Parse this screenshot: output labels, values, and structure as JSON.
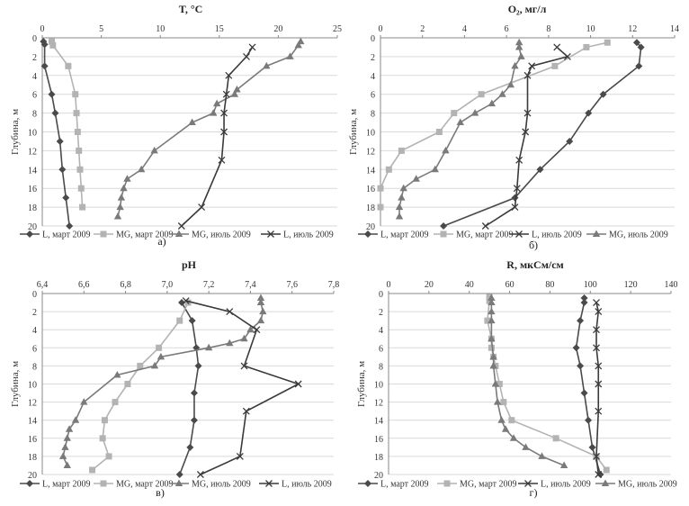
{
  "y_axis_label": "Глубина, м",
  "legend_labels": {
    "L_mar": "L, март 2009",
    "MG_mar": "MG, март 2009",
    "MG_jul": "MG, июль 2009",
    "L_jul": "L, июль 2009"
  },
  "colors": {
    "L_mar": "#4a4a4a",
    "MG_mar": "#b3b3b3",
    "MG_jul": "#7a7a7a",
    "L_jul": "#3a3a3a",
    "grid": "#d9d9d9",
    "axis": "#888888"
  },
  "chart_data": [
    {
      "id": "a",
      "type": "line",
      "title": "T, °C",
      "panel_label": "а)",
      "ylabel": "Глубина, м",
      "xlim": [
        0,
        25
      ],
      "xticks": [
        0,
        5,
        10,
        15,
        20,
        25
      ],
      "ylim": [
        0,
        20
      ],
      "yticks": [
        0,
        2,
        4,
        6,
        8,
        10,
        12,
        14,
        16,
        18,
        20
      ],
      "legend_order": [
        "L_mar",
        "MG_mar",
        "MG_jul",
        "L_jul"
      ],
      "series": [
        {
          "key": "L_mar",
          "name": "L, март 2009",
          "marker": "diamond",
          "x": [
            0.1,
            0.2,
            0.2,
            0.8,
            1.1,
            1.5,
            1.7,
            2.0,
            2.3
          ],
          "y": [
            0.4,
            0.7,
            3,
            6,
            8,
            11,
            14,
            17,
            20
          ]
        },
        {
          "key": "MG_mar",
          "name": "MG, март 2009",
          "marker": "square",
          "x": [
            0.8,
            0.9,
            2.2,
            2.8,
            2.9,
            3.0,
            3.1,
            3.2,
            3.3,
            3.4
          ],
          "y": [
            0.4,
            0.8,
            3,
            6,
            8,
            10,
            12,
            14,
            16,
            18
          ]
        },
        {
          "key": "MG_jul",
          "name": "MG, июль 2009",
          "marker": "triangle",
          "x": [
            21.9,
            21.7,
            21.0,
            19.0,
            16.5,
            16.3,
            14.8,
            14.5,
            12.7,
            9.5,
            8.4,
            7.2,
            6.9,
            6.7,
            6.6,
            6.4
          ],
          "y": [
            0.4,
            0.8,
            2,
            3,
            5.5,
            6,
            7,
            8,
            9,
            12,
            14,
            15,
            16,
            17,
            18,
            19
          ]
        },
        {
          "key": "L_jul",
          "name": "L, июль 2009",
          "marker": "x",
          "x": [
            17.8,
            17.3,
            15.8,
            15.6,
            15.4,
            15.4,
            15.2,
            13.5,
            11.8
          ],
          "y": [
            1,
            2,
            4,
            6,
            8,
            10,
            13,
            18,
            20
          ]
        }
      ]
    },
    {
      "id": "b",
      "type": "line",
      "title": "O₂, мг/л",
      "panel_label": "б)",
      "ylabel": "Глубина, м",
      "xlim": [
        0,
        14
      ],
      "xticks": [
        0,
        2,
        4,
        6,
        8,
        10,
        12,
        14
      ],
      "ylim": [
        0,
        20
      ],
      "yticks": [
        0,
        2,
        4,
        6,
        8,
        10,
        12,
        14,
        16,
        18,
        20
      ],
      "legend_order": [
        "L_mar",
        "MG_mar",
        "L_jul",
        "MG_jul"
      ],
      "series": [
        {
          "key": "L_mar",
          "name": "L, март 2009",
          "marker": "diamond",
          "x": [
            12.2,
            12.4,
            12.3,
            10.6,
            9.9,
            9.0,
            7.6,
            6.4,
            3.0
          ],
          "y": [
            0.5,
            1,
            3,
            6,
            8,
            11,
            14,
            17,
            20
          ]
        },
        {
          "key": "MG_mar",
          "name": "MG, март 2009",
          "marker": "square",
          "x": [
            10.8,
            9.8,
            8.3,
            4.8,
            3.5,
            2.8,
            1.0,
            0.4,
            0.0,
            0.0
          ],
          "y": [
            0.5,
            1,
            3,
            6,
            8,
            10,
            12,
            14,
            16,
            18
          ]
        },
        {
          "key": "L_jul",
          "name": "L, июль 2009",
          "marker": "x",
          "x": [
            8.4,
            8.9,
            7.2,
            7.0,
            7.0,
            6.9,
            6.6,
            6.5,
            6.4,
            5.0
          ],
          "y": [
            1,
            2,
            3,
            4,
            8,
            10,
            13,
            16,
            18,
            20
          ]
        },
        {
          "key": "MG_jul",
          "name": "MG, июль 2009",
          "marker": "triangle",
          "x": [
            6.6,
            6.6,
            6.7,
            6.4,
            6.2,
            5.8,
            5.3,
            4.5,
            3.8,
            3.1,
            2.6,
            1.7,
            1.1,
            1.0,
            0.9,
            0.9
          ],
          "y": [
            0.5,
            1,
            2,
            3,
            5,
            6,
            7,
            8,
            9,
            12,
            14,
            15,
            16,
            17,
            18,
            19
          ]
        }
      ]
    },
    {
      "id": "c",
      "type": "line",
      "title": "pH",
      "panel_label": "в)",
      "ylabel": "Глубина, м",
      "xlim": [
        6.4,
        7.8
      ],
      "xticks": [
        6.4,
        6.6,
        6.8,
        7.0,
        7.2,
        7.4,
        7.6,
        7.8
      ],
      "ylim": [
        0,
        20
      ],
      "yticks": [
        0,
        2,
        4,
        6,
        8,
        10,
        12,
        14,
        16,
        18,
        20
      ],
      "legend_order": [
        "L_mar",
        "MG_mar",
        "MG_jul",
        "L_jul"
      ],
      "series": [
        {
          "key": "L_mar",
          "name": "L, март 2009",
          "marker": "diamond",
          "x": [
            7.07,
            7.12,
            7.14,
            7.15,
            7.13,
            7.13,
            7.11,
            7.06
          ],
          "y": [
            1,
            3,
            6,
            8,
            11,
            14,
            17,
            20
          ]
        },
        {
          "key": "MG_mar",
          "name": "MG, март 2009",
          "marker": "square",
          "x": [
            7.1,
            7.06,
            6.96,
            6.87,
            6.81,
            6.75,
            6.7,
            6.69,
            6.72,
            6.64
          ],
          "y": [
            1,
            3,
            6,
            8,
            10,
            12,
            14,
            16,
            18,
            19.5
          ]
        },
        {
          "key": "MG_jul",
          "name": "MG, июль 2009",
          "marker": "triangle",
          "x": [
            7.45,
            7.45,
            7.46,
            7.45,
            7.4,
            7.37,
            7.3,
            7.2,
            6.97,
            6.94,
            6.76,
            6.6,
            6.56,
            6.53,
            6.52,
            6.51,
            6.5,
            6.52
          ],
          "y": [
            0.5,
            1,
            2,
            3,
            4,
            5,
            5.5,
            6,
            7,
            8,
            9,
            12,
            14,
            15,
            16,
            17,
            18,
            19
          ]
        },
        {
          "key": "L_jul",
          "name": "L, июль 2009",
          "marker": "x",
          "x": [
            7.09,
            7.3,
            7.43,
            7.37,
            7.63,
            7.38,
            7.35,
            7.16
          ],
          "y": [
            0.8,
            2,
            4,
            8,
            10,
            13,
            18,
            20
          ]
        }
      ]
    },
    {
      "id": "d",
      "type": "line",
      "title": "R, мкСм/см",
      "panel_label": "г)",
      "ylabel": "Глубина, м",
      "xlim": [
        0,
        140
      ],
      "xticks": [
        0,
        20,
        40,
        60,
        80,
        100,
        120,
        140
      ],
      "ylim": [
        0,
        20
      ],
      "yticks": [
        0,
        2,
        4,
        6,
        8,
        10,
        12,
        14,
        16,
        18,
        20
      ],
      "legend_order": [
        "L_mar",
        "MG_mar",
        "L_jul",
        "MG_jul"
      ],
      "series": [
        {
          "key": "L_mar",
          "name": "L, март 2009",
          "marker": "diamond",
          "x": [
            97,
            97,
            95,
            93,
            95,
            97,
            99,
            101,
            105
          ],
          "y": [
            0.5,
            1,
            3,
            6,
            8,
            11,
            14,
            17,
            20
          ]
        },
        {
          "key": "MG_mar",
          "name": "MG, март 2009",
          "marker": "square",
          "x": [
            50,
            50,
            49,
            51,
            51,
            52,
            53,
            55,
            57,
            61,
            83,
            103,
            108
          ],
          "y": [
            0.4,
            0.8,
            3,
            5,
            6,
            7,
            8,
            10,
            12,
            14,
            16,
            18,
            19.5
          ]
        },
        {
          "key": "L_jul",
          "name": "L, июль 2009",
          "marker": "x",
          "x": [
            103,
            104,
            103,
            103,
            104,
            104,
            104,
            103,
            104
          ],
          "y": [
            1,
            2,
            4,
            6,
            8,
            10,
            13,
            18,
            20
          ]
        },
        {
          "key": "MG_jul",
          "name": "MG, июль 2009",
          "marker": "triangle",
          "x": [
            51,
            51,
            51,
            51,
            51,
            52,
            52,
            53,
            54,
            56,
            58,
            62,
            68,
            76,
            87
          ],
          "y": [
            0.5,
            1,
            2,
            3,
            5,
            7,
            8,
            10,
            12,
            14,
            15,
            16,
            17,
            18,
            19
          ]
        }
      ]
    }
  ]
}
